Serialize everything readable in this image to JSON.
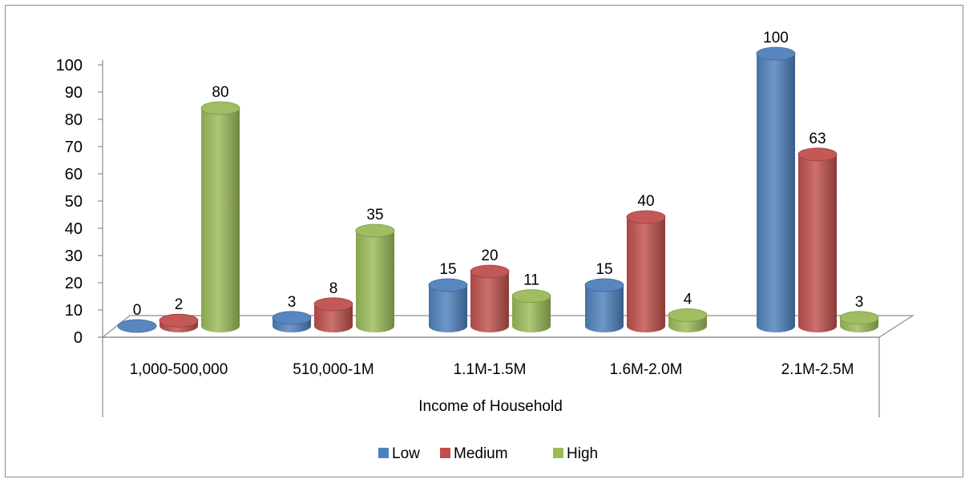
{
  "chart_data": {
    "type": "bar",
    "title": "",
    "xlabel": "Income of Household",
    "ylabel": "",
    "ylim": [
      0,
      100
    ],
    "yticks": [
      0,
      10,
      20,
      30,
      40,
      50,
      60,
      70,
      80,
      90,
      100
    ],
    "categories": [
      "1,000-500,000",
      "510,000-1M",
      "1.1M-1.5M",
      "1.6M-2.0M",
      "2.1M-2.5M"
    ],
    "series": [
      {
        "name": "Low",
        "color": "#4f81bd",
        "values": [
          0,
          3,
          15,
          15,
          100
        ]
      },
      {
        "name": "Medium",
        "color": "#c0504d",
        "values": [
          2,
          8,
          20,
          40,
          63
        ]
      },
      {
        "name": "High",
        "color": "#9bbb59",
        "values": [
          80,
          35,
          11,
          4,
          3
        ]
      }
    ],
    "legend_position": "bottom",
    "grid": false,
    "style": "3d-cylinder"
  }
}
